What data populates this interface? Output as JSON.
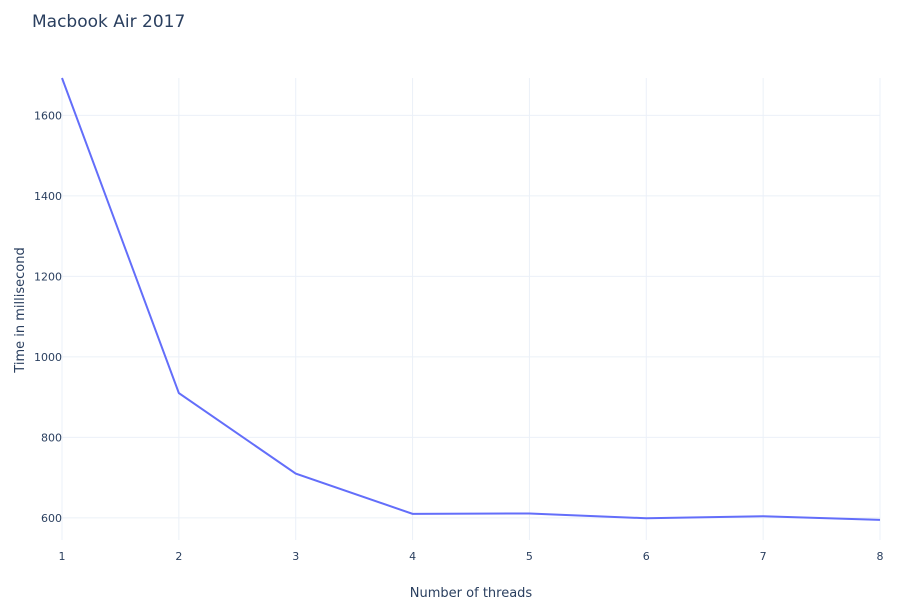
{
  "chart_data": {
    "type": "line",
    "title": "Macbook Air 2017",
    "xlabel": "Number of threads",
    "ylabel": "Time in millisecond",
    "x": [
      1,
      2,
      3,
      4,
      5,
      6,
      7,
      8
    ],
    "series": [
      {
        "values": [
          1693,
          910,
          710,
          610,
          611,
          599,
          604,
          595
        ]
      }
    ],
    "xlim": [
      1,
      8
    ],
    "ylim": [
      545,
      1693
    ],
    "xticks": [
      1,
      2,
      3,
      4,
      5,
      6,
      7,
      8
    ],
    "yticks": [
      600,
      800,
      1000,
      1200,
      1400,
      1600
    ],
    "grid": true,
    "colors": {
      "line": "#636efa",
      "grid": "#ebf0f8",
      "text": "#2a3f5f"
    }
  }
}
